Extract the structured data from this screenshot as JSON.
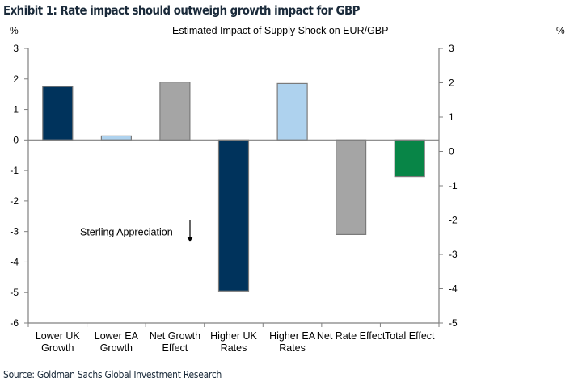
{
  "exhibit": {
    "title": "Exhibit 1: Rate impact should outweigh growth impact for GBP",
    "source": "Source: Goldman Sachs Global Investment Research"
  },
  "chart_data": {
    "type": "bar",
    "title": "Estimated Impact of Supply Shock on EUR/GBP",
    "xlabel": "",
    "ylabel": "%",
    "ylabel_right": "%",
    "categories": [
      [
        "Lower UK",
        "Growth"
      ],
      [
        "Lower EA",
        "Growth"
      ],
      [
        "Net Growth",
        "Effect"
      ],
      [
        "Higher UK",
        "Rates"
      ],
      [
        "Higher EA",
        "Rates"
      ],
      [
        "Net Rate Effect"
      ],
      [
        "Total Effect"
      ]
    ],
    "values": [
      1.75,
      0.13,
      1.9,
      -4.95,
      1.85,
      -3.1,
      -1.2
    ],
    "colors": [
      "#00335c",
      "#aed2ee",
      "#a5a5a5",
      "#00335c",
      "#aed2ee",
      "#a5a5a5",
      "#088547"
    ],
    "bar_edge_color": "#7a7a7a",
    "axis_color": "#808080",
    "ylim": [
      -6,
      3
    ],
    "yticks": [
      3,
      2,
      1,
      0,
      -1,
      -2,
      -3,
      -4,
      -5,
      -6
    ],
    "ylim_right": [
      -5,
      3
    ],
    "yticks_right": [
      3,
      2,
      1,
      0,
      -1,
      -2,
      -3,
      -4,
      -5
    ],
    "grid": false,
    "legend": "none",
    "annotations": [
      {
        "text": "Sterling Appreciation",
        "arrow": "down",
        "near_category": 1,
        "y_value": -3
      }
    ]
  }
}
